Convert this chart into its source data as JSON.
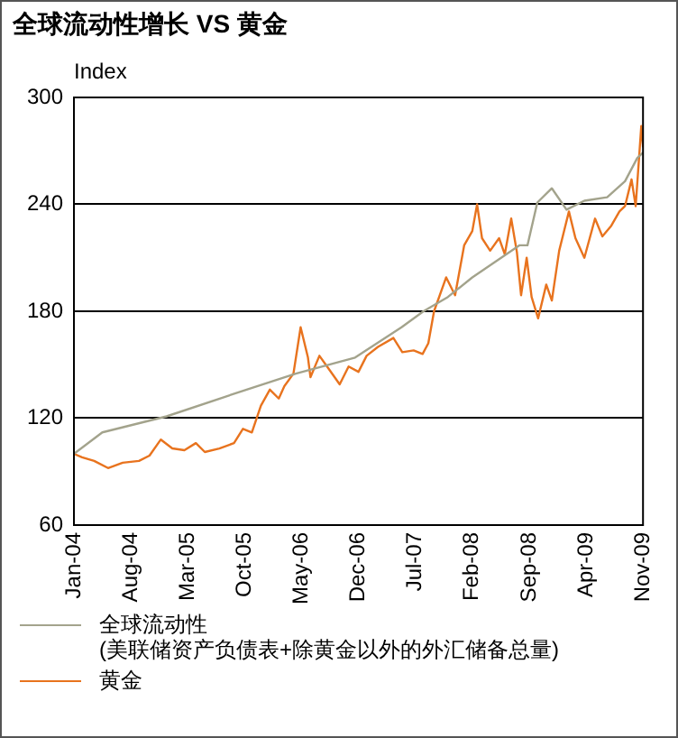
{
  "chart_data": {
    "type": "line",
    "title": "全球流动性增长 VS 黄金",
    "ylabel": "Index",
    "ylim": [
      60,
      300
    ],
    "yticks": [
      60,
      120,
      180,
      240,
      300
    ],
    "xlim": [
      "2004-01",
      "2009-11"
    ],
    "xticks": [
      {
        "value": "2004-01",
        "label": "Jan-04"
      },
      {
        "value": "2004-08",
        "label": "Aug-04"
      },
      {
        "value": "2005-03",
        "label": "Mar-05"
      },
      {
        "value": "2005-10",
        "label": "Oct-05"
      },
      {
        "value": "2006-05",
        "label": "May-06"
      },
      {
        "value": "2006-12",
        "label": "Dec-06"
      },
      {
        "value": "2007-07",
        "label": "Jul-07"
      },
      {
        "value": "2008-02",
        "label": "Feb-08"
      },
      {
        "value": "2008-09",
        "label": "Sep-08"
      },
      {
        "value": "2009-04",
        "label": "Apr-09"
      },
      {
        "value": "2009-11",
        "label": "Nov-09"
      }
    ],
    "grid": "y",
    "legend": "bottom",
    "marker": "none",
    "line_style": "solid",
    "series": [
      {
        "name": "全球流动性\n(美联储资产负债表+除黄金以外的外汇储备总量)",
        "color": "#a3a38c",
        "x": [
          "2004-01-01",
          "2004-04-16",
          "2004-12-13",
          "2005-07-19",
          "2006-04-10",
          "2006-11-19",
          "2007-05-10",
          "2007-08-01",
          "2007-11-01",
          "2008-02-01",
          "2008-07-25",
          "2008-08-25",
          "2008-10-01",
          "2008-11-25",
          "2009-01-19",
          "2009-03-25",
          "2009-06-19",
          "2009-08-25",
          "2009-10-10",
          "2009-11-01"
        ],
        "values": [
          100,
          112,
          121,
          132,
          145,
          154,
          171,
          180,
          188,
          199,
          217,
          217,
          241,
          249,
          237,
          242,
          244,
          253,
          266,
          269
        ]
      },
      {
        "name": "黄金",
        "color": "#e8731e",
        "x": [
          "2004-01-01",
          "2004-02-01",
          "2004-03-16",
          "2004-05-07",
          "2004-07-01",
          "2004-09-01",
          "2004-10-10",
          "2004-11-22",
          "2005-01-04",
          "2005-02-19",
          "2005-04-01",
          "2005-05-04",
          "2005-06-28",
          "2005-08-22",
          "2005-09-25",
          "2005-10-28",
          "2005-12-01",
          "2006-01-04",
          "2006-02-07",
          "2006-02-28",
          "2006-04-01",
          "2006-04-28",
          "2006-05-25",
          "2006-06-04",
          "2006-07-07",
          "2006-08-10",
          "2006-09-22",
          "2006-10-25",
          "2006-12-01",
          "2007-01-01",
          "2007-02-13",
          "2007-04-10",
          "2007-05-13",
          "2007-06-25",
          "2007-07-28",
          "2007-08-19",
          "2007-09-10",
          "2007-10-25",
          "2007-11-28",
          "2008-01-01",
          "2008-02-01",
          "2008-02-19",
          "2008-03-07",
          "2008-04-07",
          "2008-05-10",
          "2008-06-01",
          "2008-06-25",
          "2008-07-16",
          "2008-08-01",
          "2008-08-22",
          "2008-09-10",
          "2008-10-04",
          "2008-11-04",
          "2008-11-25",
          "2008-12-22",
          "2009-01-28",
          "2009-02-22",
          "2009-03-25",
          "2009-05-04",
          "2009-06-01",
          "2009-07-04",
          "2009-08-04",
          "2009-08-25",
          "2009-09-19",
          "2009-10-04",
          "2009-10-25",
          "2009-11-01"
        ],
        "values": [
          100,
          98,
          96,
          92,
          95,
          96,
          99,
          108,
          103,
          102,
          106,
          101,
          103,
          106,
          114,
          112,
          127,
          136,
          131,
          138,
          145,
          171,
          154,
          143,
          155,
          148,
          139,
          149,
          146,
          155,
          160,
          165,
          157,
          158,
          156,
          162,
          180,
          199,
          189,
          217,
          225,
          240,
          221,
          214,
          221,
          212,
          232,
          213,
          189,
          210,
          188,
          176,
          195,
          186,
          214,
          236,
          221,
          210,
          232,
          222,
          228,
          236,
          239,
          254,
          239,
          284,
          272
        ]
      }
    ]
  }
}
